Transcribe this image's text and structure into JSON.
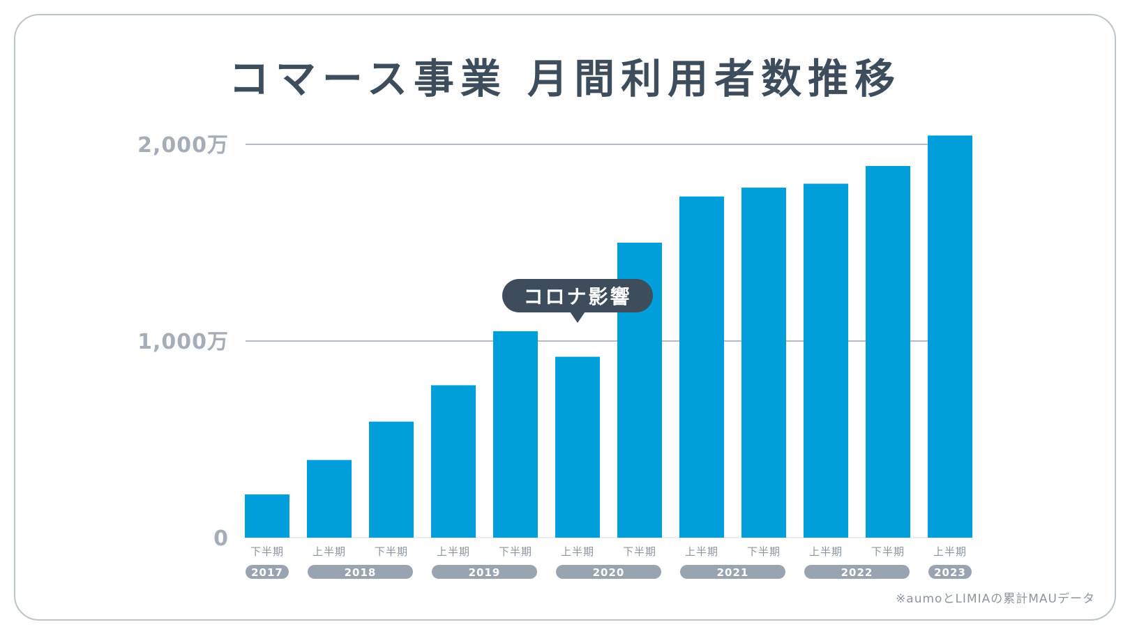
{
  "title": "コマース事業 月間利用者数推移",
  "footnote": "※aumoとLIMIAの累計MAUデータ",
  "colors": {
    "bar": "#009fdc",
    "gridline": "#b3bcc6",
    "axis_text": "#a5adb7",
    "year_pill": "#9aa4b0",
    "callout": "#3e4d5c",
    "title": "#3e4d5c"
  },
  "chart_data": {
    "type": "bar",
    "title": "コマース事業 月間利用者数推移",
    "xlabel": "",
    "ylabel": "",
    "ylim": [
      0,
      2000
    ],
    "y_unit": "万",
    "y_ticks": [
      {
        "value": 0,
        "label": "0"
      },
      {
        "value": 1000,
        "label": "1,000万"
      },
      {
        "value": 2000,
        "label": "2,000万"
      }
    ],
    "grid": true,
    "categories": [
      "下半期",
      "上半期",
      "下半期",
      "上半期",
      "下半期",
      "上半期",
      "下半期",
      "上半期",
      "下半期",
      "上半期",
      "下半期",
      "上半期"
    ],
    "values": [
      220,
      395,
      590,
      775,
      1050,
      920,
      1500,
      1735,
      1780,
      1800,
      1890,
      2045
    ],
    "year_groups": [
      {
        "label": "2017",
        "start": 0,
        "end": 0
      },
      {
        "label": "2018",
        "start": 1,
        "end": 2
      },
      {
        "label": "2019",
        "start": 3,
        "end": 4
      },
      {
        "label": "2020",
        "start": 5,
        "end": 6
      },
      {
        "label": "2021",
        "start": 7,
        "end": 8
      },
      {
        "label": "2022",
        "start": 9,
        "end": 10
      },
      {
        "label": "2023",
        "start": 11,
        "end": 11
      }
    ],
    "annotations": [
      {
        "text": "コロナ影響",
        "category_index": 5
      }
    ]
  }
}
